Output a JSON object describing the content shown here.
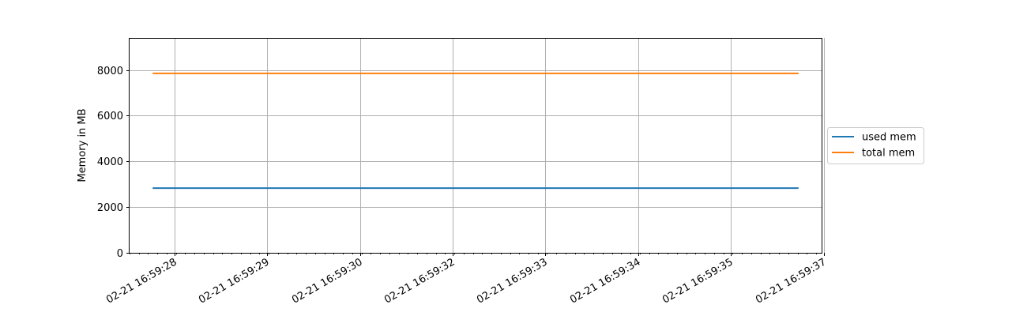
{
  "chart_data": {
    "type": "line",
    "ylabel": "Memory in MB",
    "xlabel": "",
    "title": "",
    "grid": true,
    "legend_placement": "center-right outside plot",
    "x_tick_labels": [
      "02-21 16:59:28",
      "02-21 16:59:29",
      "02-21 16:59:30",
      "02-21 16:59:32",
      "02-21 16:59:33",
      "02-21 16:59:34",
      "02-21 16:59:35",
      "02-21 16:59:37"
    ],
    "y_ticks": [
      0,
      2000,
      4000,
      6000,
      8000
    ],
    "ylim": [
      0,
      9400
    ],
    "series": [
      {
        "name": "used mem",
        "color": "#1f77b4",
        "x": [
          "02-21 16:59:27.85",
          "02-21 16:59:36.80"
        ],
        "values": [
          2830,
          2830
        ]
      },
      {
        "name": "total mem",
        "color": "#ff7f0e",
        "x": [
          "02-21 16:59:27.85",
          "02-21 16:59:36.80"
        ],
        "values": [
          7850,
          7850
        ]
      }
    ]
  }
}
